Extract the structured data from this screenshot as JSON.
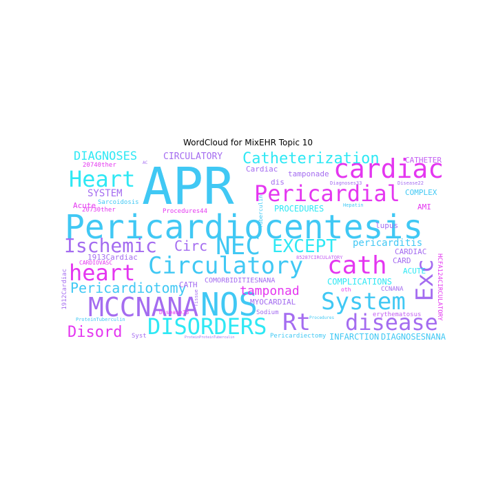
{
  "title": "WordCloud for MixEHR Topic 10",
  "words": {
    "apr": "APR",
    "pericardiocentesis": "Pericardiocentesis",
    "cardiac": "cardiac",
    "pericardial": "Pericardial",
    "heart_cap": "Heart",
    "heart": "heart",
    "catheterization": "Catheterization",
    "ischemic": "Ischemic",
    "nec": "NEC",
    "except": "EXCEPT",
    "circulatory_cap": "Circulatory",
    "cath": "cath",
    "circ": "Circ",
    "exc": "Exc",
    "nos": "NOS",
    "mccnana": "MCCNANA",
    "disorders": "DISORDERS",
    "rt": "Rt",
    "disease": "disease",
    "system_cap": "System",
    "disord": "Disord",
    "pericardiotomy": "Pericardiotomy",
    "tamponad": "tamponad",
    "diagnoses": "DIAGNOSES",
    "circulatory": "CIRCULATORY",
    "system": "SYSTEM",
    "procedures": "PROCEDURES",
    "pericarditis": "pericarditis",
    "complications": "COMPLICATIONS",
    "comorbiditiesnana": "COMORBIDITIESNANA",
    "infarction": "INFARCTION",
    "diagnosesnana": "DIAGNOSESNANA",
    "catheter": "CATHETER",
    "complex": "COMPLEX",
    "ami": "AMI",
    "acute_cap": "ACUTE",
    "card": "CARD",
    "cardiac_up": "CARDIAC",
    "tamponade": "tamponade",
    "cardiac_small": "Cardiac",
    "dis": "dis",
    "lupus": "lupus",
    "myocardial": "MYOCARDIAL",
    "cath_up": "CATH",
    "sodium": "Sodium",
    "erythematosus": "erythematosus",
    "ccnana": "CCNANA",
    "acute": "Acute",
    "sarcoidosis": "Sarcoidosis",
    "other_20740": "20740ther",
    "other_20730": "20730ther",
    "procedures44": "Procedures44",
    "cardiac_1913": "1913Cardiac",
    "cardiovasc": "CARDIOVASC",
    "disease33": "Disease33",
    "pericardiectomy": "Pericardiectomy",
    "syst": "Syst",
    "proteintuberculin": "ProteinTuberculin",
    "hepatin": "Hepatin",
    "disease22": "Disease22",
    "diagnoses33": "Diagnoses33",
    "circulatory_85287": "85287CIRCULATORY",
    "tuberculin": "Tuberculin",
    "cardiac_1912": "1912Cardiac",
    "hcfa124circulatory": "HCFA124CIRCULATORY",
    "oth": "oth",
    "tissue": "Tissue",
    "procedures_small": "Procedures",
    "proteinprotein": "ProteinProteinTuberculin",
    "ac": "AC"
  }
}
